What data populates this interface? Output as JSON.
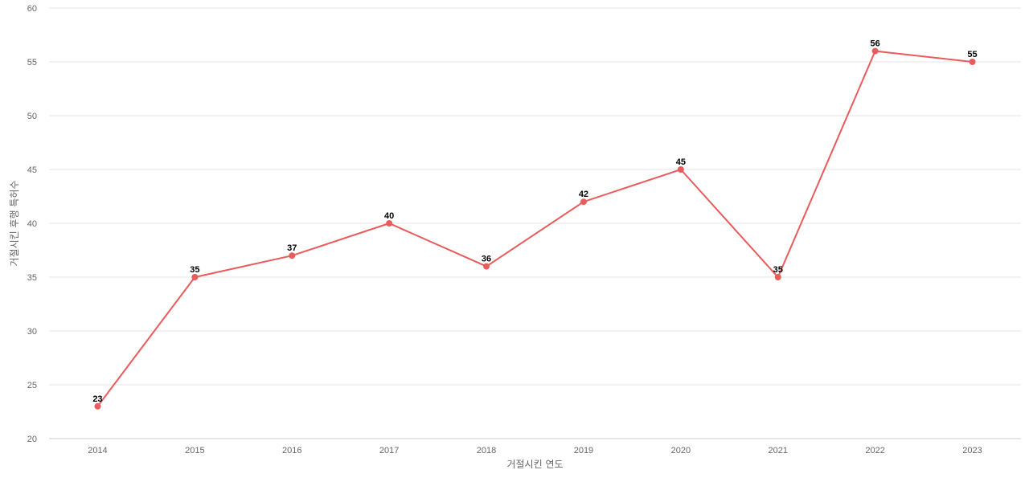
{
  "chart_data": {
    "type": "line",
    "categories": [
      "2014",
      "2015",
      "2016",
      "2017",
      "2018",
      "2019",
      "2020",
      "2021",
      "2022",
      "2023"
    ],
    "series": [
      {
        "values": [
          23,
          35,
          37,
          40,
          36,
          42,
          45,
          35,
          56,
          55
        ]
      }
    ],
    "xlabel": "거절시킨 연도",
    "ylabel": "거절시킨 후행 특허수",
    "ylim": [
      20,
      60
    ],
    "yticks": [
      20,
      25,
      30,
      35,
      40,
      45,
      50,
      55,
      60
    ],
    "grid": true,
    "data_labels": true,
    "colors": {
      "line": "#e85c5c",
      "grid": "#e6e6e6",
      "axis": "#cccccc"
    }
  }
}
